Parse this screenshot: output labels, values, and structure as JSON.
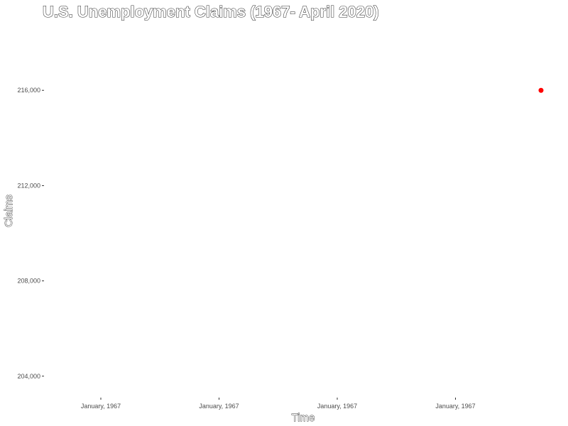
{
  "chart_data": {
    "type": "scatter",
    "title": "U.S. Unemployment Claims (1967- April 2020)",
    "xlabel": "Time",
    "ylabel": "Claims",
    "x_tick_labels": [
      "January, 1967",
      "January, 1967",
      "January, 1967",
      "January, 1967"
    ],
    "y_ticks": [
      204000,
      208000,
      212000,
      216000
    ],
    "y_tick_labels": [
      "204,000",
      "208,000",
      "212,000",
      "216,000"
    ],
    "ylim": [
      203100,
      218600
    ],
    "points": [
      {
        "x": "January, 1967",
        "y": 216000
      }
    ],
    "point_color": "#ff0000",
    "grid": false,
    "legend": "none"
  }
}
